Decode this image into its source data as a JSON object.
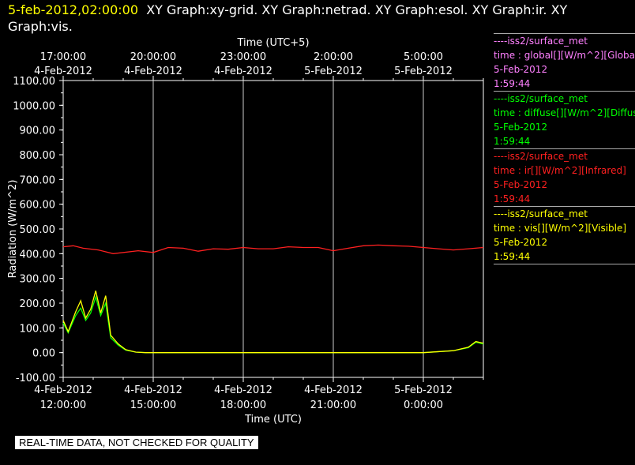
{
  "header": {
    "date": "5-feb-2012,02:00:00",
    "graphs": "XY Graph:xy-grid.  XY Graph:netrad.  XY Graph:esol.  XY Graph:ir.  XY Graph:vis."
  },
  "notice": "REAL-TIME DATA, NOT CHECKED FOR QUALITY",
  "legend": [
    {
      "source": "----iss2/surface_met",
      "label": "time : global[][W/m^2][Global",
      "date": "5-Feb-2012",
      "time": "1:59:44",
      "color": "#ff80ff"
    },
    {
      "source": "----iss2/surface_met",
      "label": "time : diffuse[][W/m^2][Diffus",
      "date": "5-Feb-2012",
      "time": "1:59:44",
      "color": "#00ff00"
    },
    {
      "source": "----iss2/surface_met",
      "label": "time : ir[][W/m^2][Infrared]",
      "date": "5-Feb-2012",
      "time": "1:59:44",
      "color": "#ff2020"
    },
    {
      "source": "----iss2/surface_met",
      "label": "time : vis[][W/m^2][Visible]",
      "date": "5-Feb-2012",
      "time": "1:59:44",
      "color": "#ffff00"
    }
  ],
  "chart_data": {
    "type": "line",
    "ylabel": "Radiation (W/m^2)",
    "xlabel": "Time (UTC)",
    "x2label": "Time (UTC+5)",
    "ylim": [
      -100,
      1100
    ],
    "xlim": [
      "2012-02-04 12:00",
      "2012-02-05 02:00"
    ],
    "yticks": [
      "1100.00",
      "1000.00",
      "900.00",
      "800.00",
      "700.00",
      "600.00",
      "500.00",
      "400.00",
      "300.00",
      "200.00",
      "100.00",
      "0.00",
      "-100.00"
    ],
    "xticks_bottom": [
      {
        "t": "2012-02-04 12:00",
        "date": "4-Feb-2012",
        "time": "12:00:00"
      },
      {
        "t": "2012-02-04 15:00",
        "date": "4-Feb-2012",
        "time": "15:00:00"
      },
      {
        "t": "2012-02-04 18:00",
        "date": "4-Feb-2012",
        "time": "18:00:00"
      },
      {
        "t": "2012-02-04 21:00",
        "date": "4-Feb-2012",
        "time": "21:00:00"
      },
      {
        "t": "2012-02-05 00:00",
        "date": "5-Feb-2012",
        "time": "0:00:00"
      }
    ],
    "xticks_top": [
      {
        "t": "2012-02-04 12:00",
        "date": "4-Feb-2012",
        "time": "17:00:00"
      },
      {
        "t": "2012-02-04 15:00",
        "date": "4-Feb-2012",
        "time": "20:00:00"
      },
      {
        "t": "2012-02-04 18:00",
        "date": "4-Feb-2012",
        "time": "23:00:00"
      },
      {
        "t": "2012-02-04 21:00",
        "date": "5-Feb-2012",
        "time": "2:00:00"
      },
      {
        "t": "2012-02-05 00:00",
        "date": "5-Feb-2012",
        "time": "5:00:00"
      }
    ],
    "grid": "vertical",
    "series": [
      {
        "name": "ir",
        "color": "#ff2020",
        "x": [
          "2012-02-04 12:00",
          "2012-02-04 12:20",
          "2012-02-04 12:40",
          "2012-02-04 13:10",
          "2012-02-04 13:40",
          "2012-02-04 14:30",
          "2012-02-04 15:00",
          "2012-02-04 15:30",
          "2012-02-04 16:00",
          "2012-02-04 16:30",
          "2012-02-04 17:00",
          "2012-02-04 17:30",
          "2012-02-04 18:00",
          "2012-02-04 18:30",
          "2012-02-04 19:00",
          "2012-02-04 19:30",
          "2012-02-04 20:00",
          "2012-02-04 20:30",
          "2012-02-04 21:00",
          "2012-02-04 21:30",
          "2012-02-04 22:00",
          "2012-02-04 22:30",
          "2012-02-04 23:00",
          "2012-02-04 23:30",
          "2012-02-05 00:00",
          "2012-02-05 00:30",
          "2012-02-05 01:00",
          "2012-02-05 01:30",
          "2012-02-05 02:00"
        ],
        "y": [
          428,
          432,
          422,
          415,
          400,
          412,
          405,
          425,
          422,
          410,
          420,
          418,
          425,
          420,
          420,
          428,
          425,
          425,
          412,
          422,
          432,
          435,
          432,
          430,
          425,
          420,
          415,
          420,
          425
        ]
      },
      {
        "name": "diffuse",
        "color": "#00ff00",
        "x": [
          "2012-02-04 12:00",
          "2012-02-04 12:10",
          "2012-02-04 12:25",
          "2012-02-04 12:35",
          "2012-02-04 12:45",
          "2012-02-04 12:55",
          "2012-02-04 13:05",
          "2012-02-04 13:15",
          "2012-02-04 13:25",
          "2012-02-04 13:35",
          "2012-02-04 13:50",
          "2012-02-04 14:05",
          "2012-02-04 14:25",
          "2012-02-04 14:45",
          "2012-02-04 15:00",
          "2012-02-04 18:00",
          "2012-02-04 21:00",
          "2012-02-05 00:00",
          "2012-02-05 01:00",
          "2012-02-05 01:30",
          "2012-02-05 01:45",
          "2012-02-05 02:00"
        ],
        "y": [
          120,
          80,
          150,
          180,
          130,
          160,
          225,
          150,
          200,
          60,
          30,
          10,
          2,
          0,
          0,
          0,
          0,
          0,
          8,
          20,
          42,
          35
        ]
      },
      {
        "name": "vis",
        "color": "#ffff00",
        "x": [
          "2012-02-04 12:00",
          "2012-02-04 12:10",
          "2012-02-04 12:25",
          "2012-02-04 12:35",
          "2012-02-04 12:45",
          "2012-02-04 12:55",
          "2012-02-04 13:05",
          "2012-02-04 13:15",
          "2012-02-04 13:25",
          "2012-02-04 13:35",
          "2012-02-04 13:50",
          "2012-02-04 14:05",
          "2012-02-04 14:25",
          "2012-02-04 14:45",
          "2012-02-04 15:00",
          "2012-02-04 18:00",
          "2012-02-04 21:00",
          "2012-02-05 00:00",
          "2012-02-05 01:00",
          "2012-02-05 01:30",
          "2012-02-05 01:45",
          "2012-02-05 02:00"
        ],
        "y": [
          130,
          85,
          165,
          210,
          140,
          175,
          250,
          160,
          230,
          70,
          35,
          12,
          2,
          0,
          0,
          0,
          0,
          0,
          8,
          22,
          45,
          38
        ]
      }
    ]
  }
}
